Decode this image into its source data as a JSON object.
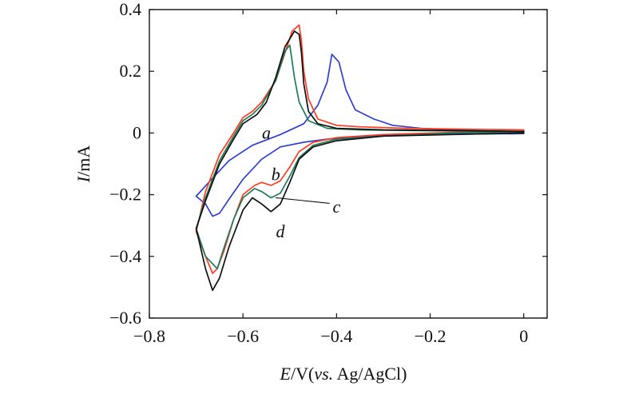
{
  "chart_data": {
    "type": "line",
    "title": "",
    "xlabel": {
      "italic": "E",
      "rest1": "/V(",
      "italic2": "vs.",
      "rest2": " Ag/AgCl)"
    },
    "ylabel": {
      "italic": "I",
      "rest": "/mA"
    },
    "xlim": [
      -0.8,
      0.05
    ],
    "ylim": [
      -0.6,
      0.4
    ],
    "x_ticks": [
      -0.8,
      -0.6,
      -0.4,
      -0.2,
      0
    ],
    "x_tick_labels": [
      "−0.8",
      "−0.6",
      "−0.4",
      "−0.2",
      "0"
    ],
    "y_ticks": [
      -0.6,
      -0.4,
      -0.2,
      0,
      0.2,
      0.4
    ],
    "y_tick_labels": [
      "−0.6",
      "−0.4",
      "−0.2",
      "0",
      "0.2",
      "0.4"
    ],
    "grid": false,
    "legend": "none",
    "series": [
      {
        "name": "a",
        "color": "#2f3fd0",
        "x": [
          -0.7,
          -0.67,
          -0.63,
          -0.58,
          -0.52,
          -0.47,
          -0.44,
          -0.42,
          -0.41,
          -0.395,
          -0.38,
          -0.36,
          -0.32,
          -0.28,
          -0.22,
          -0.12,
          0.0,
          0.0,
          -0.1,
          -0.2,
          -0.28,
          -0.35,
          -0.42,
          -0.47,
          -0.52,
          -0.56,
          -0.6,
          -0.63,
          -0.65,
          -0.665,
          -0.68,
          -0.7
        ],
        "y": [
          -0.205,
          -0.155,
          -0.09,
          -0.04,
          -0.005,
          0.03,
          0.09,
          0.165,
          0.255,
          0.23,
          0.14,
          0.075,
          0.045,
          0.025,
          0.015,
          0.008,
          0.005,
          -0.002,
          -0.003,
          -0.005,
          -0.008,
          -0.012,
          -0.02,
          -0.03,
          -0.045,
          -0.085,
          -0.15,
          -0.215,
          -0.26,
          -0.27,
          -0.23,
          -0.205
        ]
      },
      {
        "name": "b",
        "color": "#ff3b1f",
        "x": [
          -0.7,
          -0.68,
          -0.65,
          -0.62,
          -0.6,
          -0.58,
          -0.56,
          -0.53,
          -0.51,
          -0.495,
          -0.48,
          -0.475,
          -0.47,
          -0.46,
          -0.44,
          -0.4,
          -0.35,
          -0.25,
          -0.1,
          0.0,
          0.0,
          -0.15,
          -0.3,
          -0.4,
          -0.45,
          -0.48,
          -0.5,
          -0.52,
          -0.54,
          -0.56,
          -0.575,
          -0.6,
          -0.62,
          -0.64,
          -0.655,
          -0.665,
          -0.68,
          -0.7
        ],
        "y": [
          -0.32,
          -0.19,
          -0.07,
          0.0,
          0.05,
          0.07,
          0.1,
          0.17,
          0.26,
          0.33,
          0.35,
          0.3,
          0.2,
          0.11,
          0.045,
          0.025,
          0.02,
          0.015,
          0.012,
          0.01,
          0.005,
          0.002,
          -0.005,
          -0.015,
          -0.03,
          -0.06,
          -0.11,
          -0.155,
          -0.17,
          -0.16,
          -0.17,
          -0.2,
          -0.28,
          -0.38,
          -0.44,
          -0.455,
          -0.4,
          -0.32
        ]
      },
      {
        "name": "c",
        "color": "#1f7a5c",
        "x": [
          -0.7,
          -0.68,
          -0.65,
          -0.62,
          -0.6,
          -0.58,
          -0.56,
          -0.53,
          -0.51,
          -0.5,
          -0.49,
          -0.48,
          -0.46,
          -0.42,
          -0.35,
          -0.25,
          -0.1,
          0.0,
          0.0,
          -0.15,
          -0.3,
          -0.4,
          -0.45,
          -0.48,
          -0.5,
          -0.52,
          -0.54,
          -0.56,
          -0.575,
          -0.6,
          -0.62,
          -0.64,
          -0.655,
          -0.68,
          -0.7
        ],
        "y": [
          -0.31,
          -0.21,
          -0.09,
          -0.01,
          0.04,
          0.06,
          0.09,
          0.17,
          0.265,
          0.285,
          0.18,
          0.1,
          0.04,
          0.015,
          0.01,
          0.008,
          0.006,
          0.005,
          0.003,
          0.0,
          -0.01,
          -0.02,
          -0.04,
          -0.08,
          -0.14,
          -0.195,
          -0.21,
          -0.19,
          -0.18,
          -0.21,
          -0.28,
          -0.37,
          -0.44,
          -0.4,
          -0.31
        ]
      },
      {
        "name": "d",
        "color": "#111111",
        "x": [
          -0.7,
          -0.68,
          -0.65,
          -0.62,
          -0.6,
          -0.57,
          -0.55,
          -0.53,
          -0.51,
          -0.49,
          -0.48,
          -0.475,
          -0.47,
          -0.46,
          -0.44,
          -0.4,
          -0.3,
          -0.15,
          0.0,
          0.0,
          -0.15,
          -0.3,
          -0.4,
          -0.45,
          -0.48,
          -0.5,
          -0.52,
          -0.54,
          -0.56,
          -0.58,
          -0.6,
          -0.63,
          -0.65,
          -0.665,
          -0.68,
          -0.7
        ],
        "y": [
          -0.31,
          -0.22,
          -0.1,
          -0.02,
          0.03,
          0.06,
          0.1,
          0.18,
          0.28,
          0.33,
          0.32,
          0.26,
          0.16,
          0.07,
          0.03,
          0.015,
          0.01,
          0.008,
          0.005,
          0.0,
          -0.005,
          -0.01,
          -0.025,
          -0.045,
          -0.085,
          -0.16,
          -0.23,
          -0.255,
          -0.23,
          -0.21,
          -0.25,
          -0.37,
          -0.47,
          -0.51,
          -0.44,
          -0.31
        ]
      }
    ],
    "annotations": [
      {
        "text": "a",
        "series": "a"
      },
      {
        "text": "b",
        "series": "b"
      },
      {
        "text": "c",
        "series": "c"
      },
      {
        "text": "d",
        "series": "d"
      }
    ]
  }
}
